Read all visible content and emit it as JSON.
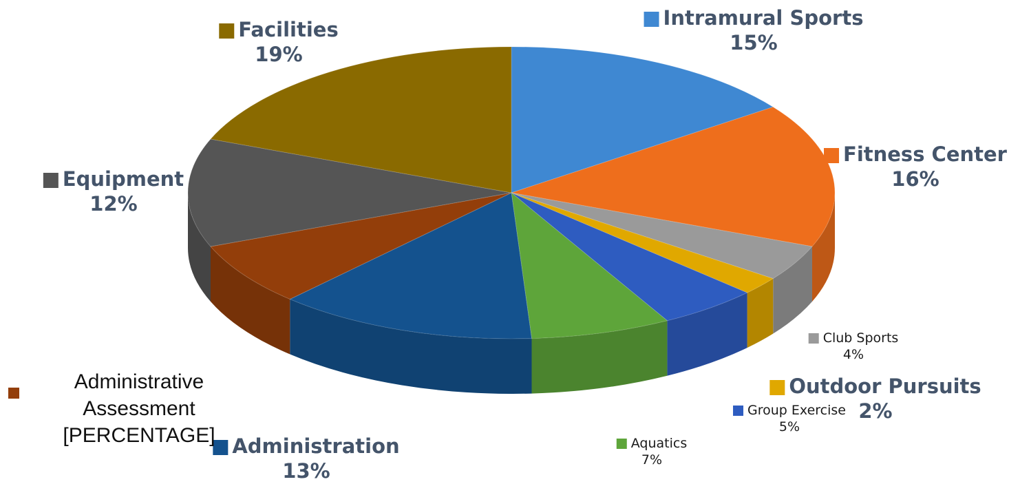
{
  "chart_data": {
    "type": "pie",
    "categories": [
      "Intramural Sports",
      "Fitness Center",
      "Club Sports",
      "Outdoor Pursuits",
      "Group Exercise",
      "Aquatics",
      "Administration",
      "Administrative Assessment",
      "Equipment",
      "Facilities"
    ],
    "values": [
      15,
      16,
      4,
      2,
      5,
      7,
      13,
      7,
      12,
      19
    ],
    "value_labels": [
      "15%",
      "16%",
      "4%",
      "2%",
      "5%",
      "7%",
      "13%",
      "[PERCENTAGE]",
      "12%",
      "19%"
    ],
    "colors": [
      "#3f88d2",
      "#ee6e1c",
      "#9a9a9a",
      "#e0a800",
      "#2e5cc0",
      "#5ea53a",
      "#14528e",
      "#933e0a",
      "#555555",
      "#8a6a00"
    ]
  }
}
